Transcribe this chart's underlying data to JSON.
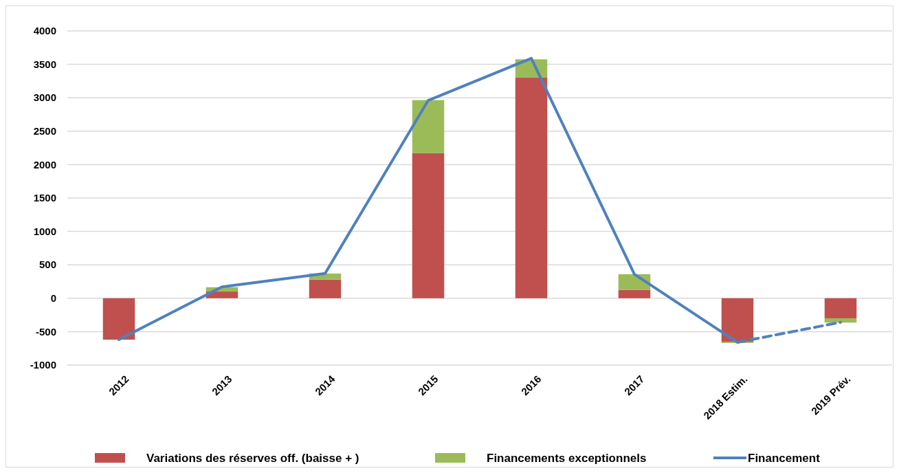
{
  "chart_data": {
    "type": "bar",
    "stacked": true,
    "categories": [
      "2012",
      "2013",
      "2014",
      "2015",
      "2016",
      "2017",
      "2018 Estim.",
      "2019 Prév."
    ],
    "series": [
      {
        "name": "Variations des réserves off. (baisse + )",
        "color": "#c0504d",
        "values": [
          -620,
          100,
          280,
          2170,
          3300,
          125,
          -655,
          -300
        ]
      },
      {
        "name": "Financements exceptionnels",
        "color": "#9bbb59",
        "values": [
          0,
          65,
          90,
          795,
          275,
          235,
          -15,
          -65
        ]
      },
      {
        "name": "Financement",
        "type": "line",
        "color": "#4f81bd",
        "line_style": "solid",
        "values": [
          -620,
          170,
          370,
          2960,
          3590,
          360,
          -660,
          null
        ]
      },
      {
        "type": "line",
        "color": "#4f81bd",
        "line_style": "dashed",
        "values": [
          null,
          null,
          null,
          null,
          null,
          null,
          -660,
          -360
        ]
      }
    ],
    "ylim": [
      -1000,
      4000
    ],
    "yticks": [
      -1000,
      -500,
      0,
      500,
      1000,
      1500,
      2000,
      2500,
      3000,
      3500,
      4000
    ],
    "grid": "y",
    "legend": "bottom"
  }
}
